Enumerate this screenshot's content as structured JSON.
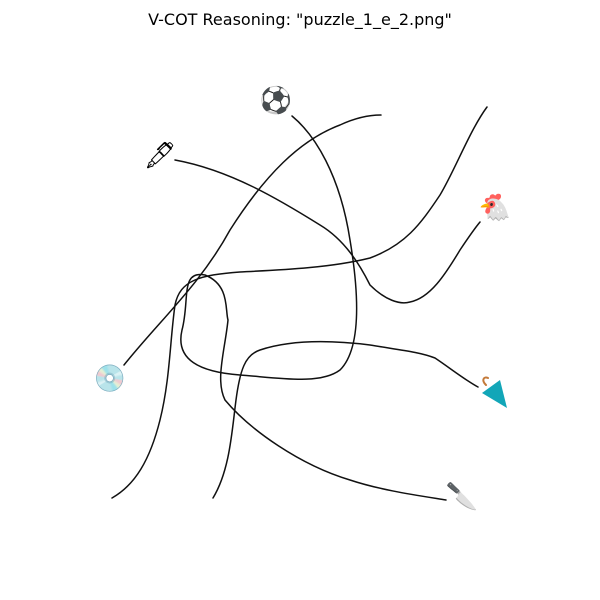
{
  "title": "V-COT Reasoning: \"puzzle_1_e_2.png\"",
  "line_color": "#111111",
  "items": {
    "soccer_ball": {
      "icon": "soccer-ball-icon",
      "glyph": "⚽"
    },
    "pen": {
      "icon": "fountain-pen-icon",
      "glyph": "🖋"
    },
    "chicken": {
      "icon": "chicken-icon",
      "glyph": "🐔"
    },
    "cd": {
      "icon": "cd-disc-icon",
      "glyph": "💿"
    },
    "umbrella": {
      "icon": "umbrella-icon",
      "glyph": "☂"
    },
    "knife": {
      "icon": "knife-icon",
      "glyph": "🔪"
    }
  }
}
